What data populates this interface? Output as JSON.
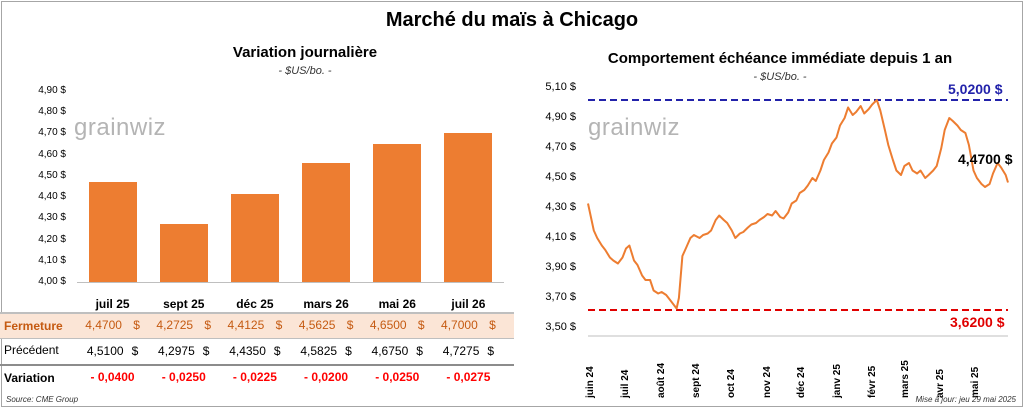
{
  "title": "Marché du maïs à Chicago",
  "left": {
    "title": "Variation journalière",
    "units": "- $US/bo. -",
    "watermark": "grainwiz",
    "y_ticks": [
      "4,90 $",
      "4,80 $",
      "4,70 $",
      "4,60 $",
      "4,50 $",
      "4,40 $",
      "4,30 $",
      "4,20 $",
      "4,10 $",
      "4,00 $"
    ],
    "table": {
      "row_labels": {
        "close": "Fermeture",
        "previous": "Précédent",
        "change": "Variation"
      },
      "close": [
        "4,4700",
        "4,2725",
        "4,4125",
        "4,5625",
        "4,6500",
        "4,7000"
      ],
      "previous": [
        "4,5100",
        "4,2975",
        "4,4350",
        "4,5825",
        "4,6750",
        "4,7275"
      ],
      "change": [
        "- 0,0400",
        "- 0,0250",
        "- 0,0225",
        "- 0,0200",
        "- 0,0250",
        "- 0,0275"
      ],
      "currency": "$"
    }
  },
  "right": {
    "title": "Comportement échéance immédiate depuis 1 an",
    "units": "- $US/bo. -",
    "watermark": "grainwiz",
    "y_ticks": [
      "5,10 $",
      "4,90 $",
      "4,70 $",
      "4,50 $",
      "4,30 $",
      "4,10 $",
      "3,90 $",
      "3,70 $",
      "3,50 $"
    ],
    "month_ticks": [
      "juin 24",
      "juil 24",
      "août 24",
      "sept 24",
      "oct 24",
      "nov 24",
      "déc 24",
      "janv 25",
      "févr 25",
      "mars 25",
      "avr 25",
      "mai 25"
    ],
    "high_label": "5,0200 $",
    "low_label": "3,6200 $",
    "last_label": "4,4700 $"
  },
  "colors": {
    "bar": "#ed7d31",
    "line": "#ed7d31",
    "high": "#2222aa",
    "low": "#e00000",
    "close_row": "#fbe5d6",
    "negative": "#ff0000"
  },
  "footer": {
    "source": "Source: CME Group",
    "updated": "Mise à jour: jeu 29 mai 2025"
  },
  "chart_data": [
    {
      "type": "bar",
      "title": "Variation journalière",
      "ylabel": "$US/bo.",
      "categories": [
        "juil 25",
        "sept 25",
        "déc 25",
        "mars 26",
        "mai 26",
        "juil 26"
      ],
      "values": [
        4.47,
        4.2725,
        4.4125,
        4.5625,
        4.65,
        4.7
      ],
      "ylim": [
        4.0,
        4.9
      ],
      "grid": false
    },
    {
      "type": "line",
      "title": "Comportement échéance immédiate depuis 1 an",
      "ylabel": "$US/bo.",
      "ylim": [
        3.5,
        5.1
      ],
      "x_start": "2024-05-29",
      "x_end": "2025-05-29",
      "points": [
        [
          "2024-05-29",
          4.33
        ],
        [
          "2024-06-03",
          4.15
        ],
        [
          "2024-06-06",
          4.1
        ],
        [
          "2024-06-10",
          4.05
        ],
        [
          "2024-06-13",
          4.02
        ],
        [
          "2024-06-17",
          3.97
        ],
        [
          "2024-06-20",
          3.95
        ],
        [
          "2024-06-24",
          3.93
        ],
        [
          "2024-06-28",
          3.97
        ],
        [
          "2024-07-01",
          4.03
        ],
        [
          "2024-07-04",
          4.05
        ],
        [
          "2024-07-08",
          3.95
        ],
        [
          "2024-07-11",
          3.92
        ],
        [
          "2024-07-15",
          3.85
        ],
        [
          "2024-07-18",
          3.82
        ],
        [
          "2024-07-22",
          3.82
        ],
        [
          "2024-07-25",
          3.75
        ],
        [
          "2024-07-29",
          3.73
        ],
        [
          "2024-08-01",
          3.74
        ],
        [
          "2024-08-05",
          3.72
        ],
        [
          "2024-08-08",
          3.69
        ],
        [
          "2024-08-12",
          3.65
        ],
        [
          "2024-08-14",
          3.63
        ],
        [
          "2024-08-16",
          3.7
        ],
        [
          "2024-08-19",
          3.98
        ],
        [
          "2024-08-22",
          4.03
        ],
        [
          "2024-08-26",
          4.1
        ],
        [
          "2024-08-29",
          4.12
        ],
        [
          "2024-09-03",
          4.1
        ],
        [
          "2024-09-06",
          4.12
        ],
        [
          "2024-09-10",
          4.13
        ],
        [
          "2024-09-13",
          4.15
        ],
        [
          "2024-09-17",
          4.22
        ],
        [
          "2024-09-20",
          4.25
        ],
        [
          "2024-09-24",
          4.22
        ],
        [
          "2024-09-27",
          4.2
        ],
        [
          "2024-10-01",
          4.15
        ],
        [
          "2024-10-04",
          4.1
        ],
        [
          "2024-10-08",
          4.13
        ],
        [
          "2024-10-11",
          4.14
        ],
        [
          "2024-10-15",
          4.17
        ],
        [
          "2024-10-18",
          4.19
        ],
        [
          "2024-10-22",
          4.2
        ],
        [
          "2024-10-25",
          4.22
        ],
        [
          "2024-10-29",
          4.24
        ],
        [
          "2024-11-01",
          4.26
        ],
        [
          "2024-11-05",
          4.25
        ],
        [
          "2024-11-08",
          4.28
        ],
        [
          "2024-11-12",
          4.24
        ],
        [
          "2024-11-15",
          4.23
        ],
        [
          "2024-11-19",
          4.27
        ],
        [
          "2024-11-22",
          4.33
        ],
        [
          "2024-11-26",
          4.35
        ],
        [
          "2024-11-29",
          4.4
        ],
        [
          "2024-12-03",
          4.42
        ],
        [
          "2024-12-06",
          4.45
        ],
        [
          "2024-12-10",
          4.5
        ],
        [
          "2024-12-13",
          4.48
        ],
        [
          "2024-12-17",
          4.55
        ],
        [
          "2024-12-20",
          4.62
        ],
        [
          "2024-12-24",
          4.67
        ],
        [
          "2024-12-27",
          4.73
        ],
        [
          "2024-12-31",
          4.77
        ],
        [
          "2025-01-03",
          4.85
        ],
        [
          "2025-01-07",
          4.9
        ],
        [
          "2025-01-10",
          4.97
        ],
        [
          "2025-01-14",
          4.92
        ],
        [
          "2025-01-17",
          4.94
        ],
        [
          "2025-01-21",
          4.98
        ],
        [
          "2025-01-24",
          4.93
        ],
        [
          "2025-01-28",
          4.96
        ],
        [
          "2025-01-31",
          4.99
        ],
        [
          "2025-02-04",
          5.02
        ],
        [
          "2025-02-07",
          4.95
        ],
        [
          "2025-02-11",
          4.82
        ],
        [
          "2025-02-14",
          4.72
        ],
        [
          "2025-02-18",
          4.62
        ],
        [
          "2025-02-21",
          4.55
        ],
        [
          "2025-02-25",
          4.52
        ],
        [
          "2025-02-28",
          4.58
        ],
        [
          "2025-03-04",
          4.6
        ],
        [
          "2025-03-07",
          4.55
        ],
        [
          "2025-03-11",
          4.53
        ],
        [
          "2025-03-14",
          4.55
        ],
        [
          "2025-03-18",
          4.5
        ],
        [
          "2025-03-21",
          4.52
        ],
        [
          "2025-03-25",
          4.55
        ],
        [
          "2025-03-28",
          4.58
        ],
        [
          "2025-04-01",
          4.7
        ],
        [
          "2025-04-04",
          4.82
        ],
        [
          "2025-04-08",
          4.9
        ],
        [
          "2025-04-11",
          4.88
        ],
        [
          "2025-04-15",
          4.85
        ],
        [
          "2025-04-18",
          4.82
        ],
        [
          "2025-04-22",
          4.8
        ],
        [
          "2025-04-25",
          4.72
        ],
        [
          "2025-04-29",
          4.55
        ],
        [
          "2025-05-02",
          4.5
        ],
        [
          "2025-05-06",
          4.46
        ],
        [
          "2025-05-09",
          4.44
        ],
        [
          "2025-05-13",
          4.46
        ],
        [
          "2025-05-16",
          4.53
        ],
        [
          "2025-05-20",
          4.6
        ],
        [
          "2025-05-23",
          4.57
        ],
        [
          "2025-05-27",
          4.52
        ],
        [
          "2025-05-29",
          4.47
        ]
      ],
      "high": 5.02,
      "low": 3.62,
      "last": 4.47
    }
  ]
}
